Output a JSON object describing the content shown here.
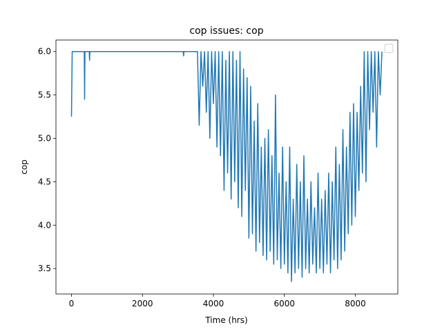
{
  "chart_data": {
    "type": "line",
    "title": "cop issues: cop",
    "x_label": "Time (hrs)",
    "y_label": "cop",
    "xlim": [
      -438,
      9197
    ],
    "ylim": [
      3.207,
      6.133
    ],
    "xticks": [
      0,
      2000,
      4000,
      6000,
      8000
    ],
    "yticks": [
      3.5,
      {
        "value": 4.0,
        "label": "4.0"
      },
      4.5,
      {
        "value": 5.0,
        "label": "5.0"
      },
      5.5,
      {
        "value": 6.0,
        "label": "6.0"
      }
    ],
    "legend": "upper right",
    "series": [
      {
        "color": "#1f77b4",
        "x": [
          0,
          20,
          360,
          370,
          380,
          500,
          510,
          520,
          3150,
          3160,
          3170,
          3550,
          3600,
          3650,
          3700,
          3750,
          3800,
          3850,
          3900,
          3950,
          4000,
          4050,
          4100,
          4150,
          4200,
          4250,
          4300,
          4350,
          4400,
          4450,
          4500,
          4550,
          4600,
          4650,
          4700,
          4750,
          4800,
          4850,
          4900,
          4950,
          5000,
          5050,
          5100,
          5150,
          5200,
          5250,
          5300,
          5350,
          5400,
          5450,
          5500,
          5550,
          5600,
          5650,
          5700,
          5750,
          5800,
          5850,
          5900,
          5950,
          6000,
          6050,
          6100,
          6150,
          6200,
          6250,
          6300,
          6350,
          6400,
          6450,
          6500,
          6550,
          6600,
          6650,
          6700,
          6750,
          6800,
          6850,
          6900,
          6950,
          7000,
          7050,
          7100,
          7150,
          7200,
          7250,
          7300,
          7350,
          7400,
          7450,
          7500,
          7550,
          7600,
          7650,
          7700,
          7750,
          7800,
          7850,
          7900,
          7950,
          8000,
          8050,
          8100,
          8150,
          8200,
          8250,
          8300,
          8350,
          8400,
          8450,
          8500,
          8550,
          8600,
          8650,
          8700,
          8750
        ],
        "values": [
          5.25,
          6.0,
          6.0,
          5.45,
          6.0,
          6.0,
          5.9,
          6.0,
          6.0,
          5.95,
          6.0,
          6.0,
          5.15,
          6.0,
          5.6,
          6.0,
          5.3,
          6.0,
          5.0,
          6.0,
          5.4,
          6.0,
          4.9,
          6.0,
          4.8,
          6.0,
          4.4,
          5.9,
          4.6,
          6.0,
          4.3,
          6.0,
          4.5,
          5.9,
          4.2,
          6.0,
          4.1,
          5.8,
          4.4,
          5.7,
          3.85,
          5.6,
          3.9,
          5.2,
          3.7,
          5.4,
          3.8,
          4.9,
          3.65,
          5.0,
          3.6,
          5.1,
          3.7,
          4.8,
          3.55,
          5.5,
          3.6,
          4.6,
          3.5,
          4.9,
          3.55,
          4.5,
          3.45,
          4.9,
          3.35,
          4.3,
          3.45,
          4.7,
          3.5,
          4.5,
          3.4,
          4.8,
          3.5,
          4.3,
          3.45,
          4.5,
          3.55,
          4.2,
          3.45,
          4.6,
          3.5,
          4.3,
          3.45,
          4.4,
          3.55,
          4.6,
          3.45,
          4.5,
          3.6,
          4.9,
          3.5,
          4.7,
          3.6,
          5.1,
          3.7,
          4.9,
          3.9,
          5.3,
          4.0,
          5.4,
          4.1,
          5.3,
          4.4,
          5.6,
          4.6,
          6.0,
          4.5,
          6.0,
          5.1,
          6.0,
          5.3,
          6.0,
          4.9,
          6.0,
          5.5,
          6.0
        ]
      }
    ]
  }
}
